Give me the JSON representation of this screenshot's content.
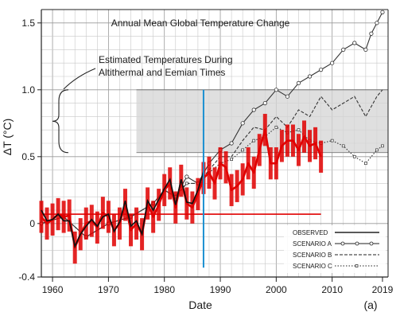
{
  "chart_data": {
    "type": "line",
    "title": "Annual Mean Global Temperature Change",
    "xlabel": "Date",
    "ylabel": "ΔT (°C)",
    "panel_label": "(a)",
    "xlim": [
      1958,
      2020
    ],
    "ylim": [
      -0.4,
      1.6
    ],
    "x_ticks": [
      1960,
      1970,
      1980,
      1990,
      2000,
      2010,
      2019
    ],
    "y_ticks": [
      -0.4,
      0,
      0.5,
      1.0,
      1.5
    ],
    "y_tick_labels": [
      "-0.4",
      "0",
      "0.5",
      "1.0",
      "1.5"
    ],
    "grid": true,
    "shaded_band": {
      "y_range": [
        0.53,
        1.0
      ],
      "label_line1": "Estimated Temperatures During",
      "label_line2": "Altithermal and Eemian Times"
    },
    "vertical_marker": {
      "x": 1987,
      "color": "#1a8fd1"
    },
    "red_reference_line": {
      "x_range": [
        1958,
        2008
      ],
      "y": 0.07,
      "color": "#e00000"
    },
    "legend_position": "bottom-right",
    "series": [
      {
        "name": "OBSERVED",
        "style": "solid",
        "color": "#111111",
        "x": [
          1958,
          1959,
          1960,
          1961,
          1962,
          1963,
          1964,
          1965,
          1966,
          1967,
          1968,
          1969,
          1970,
          1971,
          1972,
          1973,
          1974,
          1975,
          1976,
          1977,
          1978,
          1979,
          1980,
          1981,
          1982,
          1983,
          1984,
          1985,
          1986,
          1987
        ],
        "y": [
          0.1,
          0.02,
          0.03,
          0.07,
          0.02,
          0.02,
          -0.17,
          -0.08,
          -0.02,
          0.03,
          -0.02,
          0.05,
          0.07,
          -0.06,
          0.01,
          0.17,
          -0.02,
          0.02,
          -0.08,
          0.17,
          0.1,
          0.18,
          0.26,
          0.33,
          0.14,
          0.33,
          0.16,
          0.15,
          0.25,
          0.39
        ]
      },
      {
        "name": "SCENARIO A",
        "style": "solid-circles",
        "color": "#333333",
        "x": [
          1958,
          1962,
          1966,
          1970,
          1974,
          1978,
          1980,
          1982,
          1984,
          1986,
          1988,
          1990,
          1992,
          1994,
          1996,
          1998,
          2000,
          2002,
          2004,
          2006,
          2008,
          2010,
          2012,
          2014,
          2016,
          2017,
          2018,
          2019
        ],
        "y": [
          0.0,
          0.05,
          -0.1,
          0.0,
          0.05,
          0.15,
          0.25,
          0.2,
          0.35,
          0.3,
          0.45,
          0.55,
          0.6,
          0.75,
          0.85,
          0.9,
          1.0,
          0.95,
          1.05,
          1.1,
          1.15,
          1.2,
          1.3,
          1.35,
          1.3,
          1.42,
          1.5,
          1.58
        ]
      },
      {
        "name": "SCENARIO B",
        "style": "dashed",
        "color": "#333333",
        "x": [
          1958,
          1962,
          1966,
          1970,
          1974,
          1978,
          1980,
          1982,
          1984,
          1986,
          1988,
          1990,
          1992,
          1994,
          1996,
          1998,
          2000,
          2002,
          2004,
          2006,
          2008,
          2010,
          2012,
          2014,
          2016,
          2018,
          2019
        ],
        "y": [
          0.0,
          0.05,
          -0.1,
          0.0,
          0.05,
          0.15,
          0.25,
          0.2,
          0.3,
          0.3,
          0.4,
          0.5,
          0.5,
          0.62,
          0.72,
          0.7,
          0.8,
          0.72,
          0.85,
          0.8,
          0.95,
          0.85,
          0.9,
          0.95,
          0.8,
          0.95,
          1.0
        ]
      },
      {
        "name": "SCENARIO C",
        "style": "dotted",
        "color": "#333333",
        "x": [
          1958,
          1962,
          1966,
          1970,
          1974,
          1978,
          1980,
          1982,
          1984,
          1986,
          1988,
          1990,
          1992,
          1994,
          1996,
          1998,
          2000,
          2002,
          2004,
          2006,
          2008,
          2010,
          2012,
          2014,
          2016,
          2018,
          2019
        ],
        "y": [
          0.0,
          0.05,
          -0.1,
          0.0,
          0.05,
          0.15,
          0.25,
          0.2,
          0.3,
          0.3,
          0.38,
          0.45,
          0.48,
          0.55,
          0.62,
          0.65,
          0.72,
          0.68,
          0.7,
          0.62,
          0.6,
          0.62,
          0.58,
          0.5,
          0.45,
          0.55,
          0.58
        ]
      },
      {
        "name": "",
        "style": "red-bars",
        "color": "#e00000",
        "x": [
          1958,
          1959,
          1960,
          1961,
          1962,
          1963,
          1964,
          1965,
          1966,
          1967,
          1968,
          1969,
          1970,
          1971,
          1972,
          1973,
          1974,
          1975,
          1976,
          1977,
          1978,
          1979,
          1980,
          1981,
          1982,
          1983,
          1984,
          1985,
          1986,
          1987,
          1988,
          1989,
          1990,
          1991,
          1992,
          1993,
          1994,
          1995,
          1996,
          1997,
          1998,
          1999,
          2000,
          2001,
          2002,
          2003,
          2004,
          2005,
          2006,
          2007,
          2008
        ],
        "y": [
          0.05,
          0.0,
          0.03,
          0.07,
          0.05,
          0.06,
          -0.18,
          -0.08,
          0.0,
          0.02,
          -0.03,
          0.08,
          0.05,
          -0.05,
          0.0,
          0.14,
          -0.05,
          0.0,
          -0.08,
          0.15,
          0.05,
          0.14,
          0.25,
          0.3,
          0.12,
          0.32,
          0.15,
          0.12,
          0.22,
          0.34,
          0.38,
          0.3,
          0.45,
          0.42,
          0.25,
          0.28,
          0.33,
          0.45,
          0.38,
          0.55,
          0.7,
          0.45,
          0.45,
          0.58,
          0.62,
          0.62,
          0.55,
          0.65,
          0.58,
          0.6,
          0.5
        ]
      }
    ]
  }
}
